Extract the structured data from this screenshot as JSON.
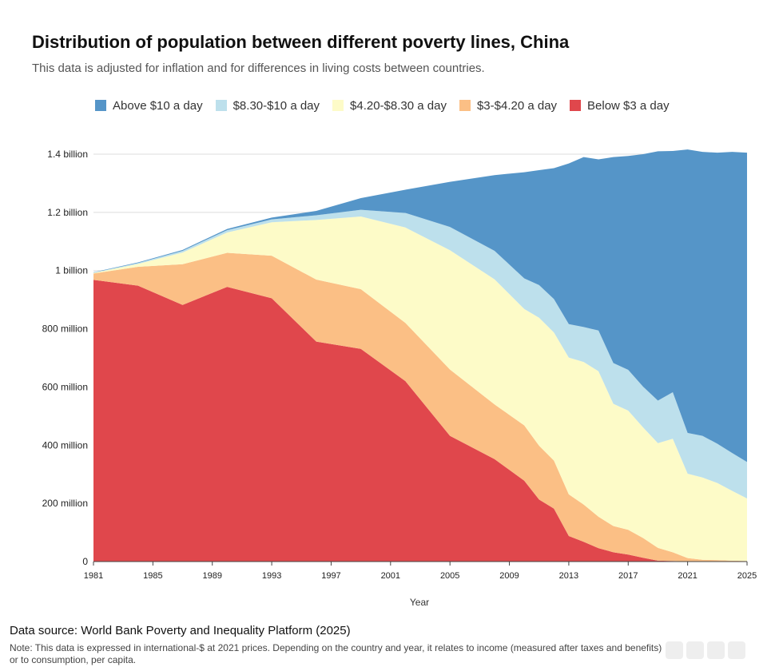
{
  "title": "Distribution of population between different poverty lines, China",
  "subtitle": "This data is adjusted for inflation and for differences in living costs between countries.",
  "source": "Data source: World Bank Poverty and Inequality Platform (2025)",
  "note": "Note: This data is expressed in international-$ at 2021 prices. Depending on the country and year, it relates to income (measured after taxes and benefits) or to consumption, per capita.",
  "chart_data": {
    "type": "area",
    "stacked": true,
    "xlabel": "Year",
    "ylabel": "",
    "x": [
      1981,
      1984,
      1987,
      1990,
      1993,
      1996,
      1999,
      2002,
      2005,
      2008,
      2010,
      2011,
      2012,
      2013,
      2014,
      2015,
      2016,
      2017,
      2018,
      2019,
      2020,
      2021,
      2022,
      2023,
      2024,
      2025
    ],
    "xticks": [
      1981,
      1985,
      1989,
      1993,
      1997,
      2001,
      2005,
      2009,
      2013,
      2017,
      2021,
      2025
    ],
    "xlim": [
      1981,
      2025
    ],
    "ylim": [
      0,
      1400
    ],
    "yunit": "million",
    "yticks": [
      {
        "value": 0,
        "label": "0"
      },
      {
        "value": 200,
        "label": "200 million"
      },
      {
        "value": 400,
        "label": "400 million"
      },
      {
        "value": 600,
        "label": "600 million"
      },
      {
        "value": 800,
        "label": "800 million"
      },
      {
        "value": 1000,
        "label": "1 billion"
      },
      {
        "value": 1200,
        "label": "1.2 billion"
      },
      {
        "value": 1400,
        "label": "1.4 billion"
      }
    ],
    "grid": true,
    "legend_position": "top",
    "series": [
      {
        "name": "Below $3 a day",
        "color": "#e0474c",
        "values": [
          968,
          948,
          882,
          944,
          905,
          756,
          731,
          620,
          432,
          352,
          278,
          213,
          182,
          88,
          68,
          46,
          32,
          24,
          13,
          3,
          2,
          0,
          0,
          0,
          0,
          0
        ]
      },
      {
        "name": "$3-$4.20 a day",
        "color": "#fbbf85",
        "values": [
          22,
          65,
          140,
          117,
          146,
          213,
          205,
          200,
          228,
          188,
          190,
          185,
          165,
          143,
          128,
          108,
          90,
          85,
          68,
          44,
          30,
          12,
          6,
          5,
          3,
          2
        ]
      },
      {
        "name": "$4.20-$8.30 a day",
        "color": "#fdfbc8",
        "values": [
          2,
          10,
          40,
          70,
          115,
          205,
          250,
          328,
          410,
          430,
          400,
          440,
          440,
          470,
          490,
          500,
          420,
          410,
          380,
          360,
          390,
          290,
          283,
          265,
          240,
          215
        ]
      },
      {
        "name": "$8.30-$10 a day",
        "color": "#bde0ec",
        "values": [
          1,
          3,
          6,
          8,
          10,
          16,
          23,
          50,
          80,
          98,
          105,
          112,
          115,
          115,
          120,
          140,
          140,
          140,
          140,
          146,
          160,
          140,
          143,
          135,
          130,
          125
        ]
      },
      {
        "name": "Above $10 a day",
        "color": "#5595c8",
        "values": [
          1,
          2,
          3,
          4,
          6,
          15,
          40,
          80,
          155,
          260,
          365,
          395,
          450,
          552,
          584,
          588,
          708,
          735,
          799,
          857,
          829,
          974,
          976,
          1000,
          1035,
          1063
        ]
      }
    ]
  }
}
